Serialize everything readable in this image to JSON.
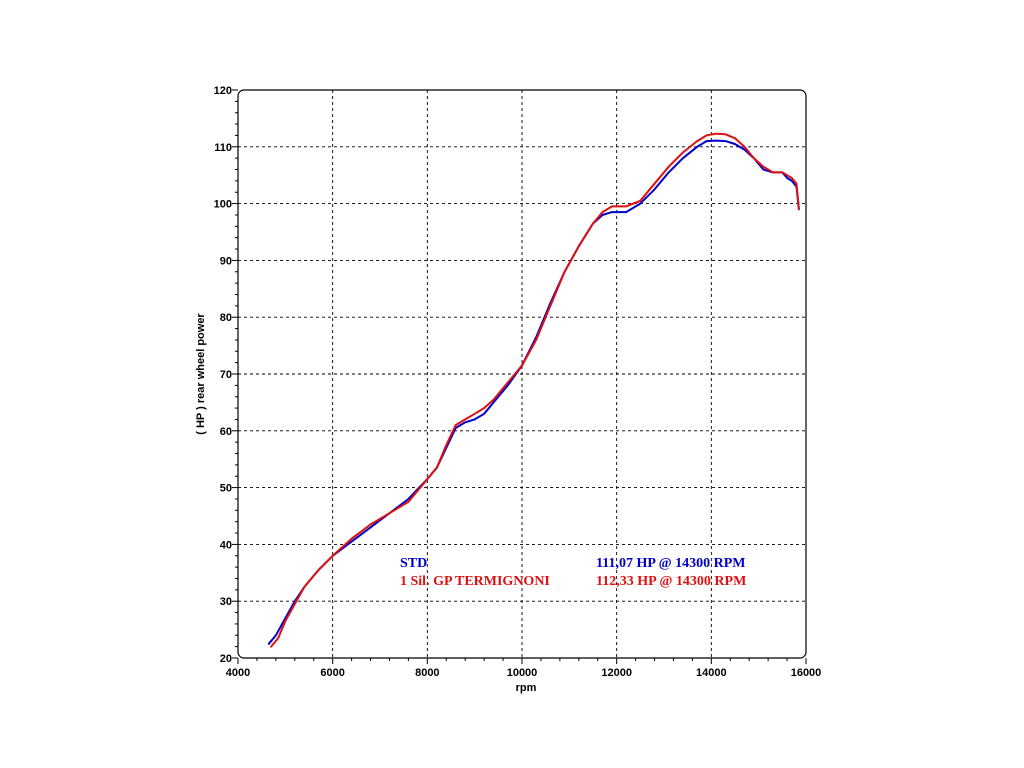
{
  "chart_data": {
    "type": "line",
    "xlabel": "rpm",
    "ylabel": "( HP )   rear  wheel  power",
    "xlim": [
      4000,
      16000
    ],
    "ylim": [
      20,
      120
    ],
    "x_ticks": [
      "4000",
      "6000",
      "8000",
      "10000",
      "12000",
      "14000",
      "16000"
    ],
    "y_ticks": [
      "20",
      "30",
      "40",
      "50",
      "60",
      "70",
      "80",
      "90",
      "100",
      "110",
      "120"
    ],
    "grid": true,
    "series": [
      {
        "name": "STD",
        "summary": "111,07 HP @ 14300 RPM",
        "color": "#0000cc",
        "x": [
          4650,
          4800,
          5000,
          5200,
          5400,
          5700,
          6000,
          6400,
          6800,
          7200,
          7600,
          8000,
          8200,
          8400,
          8600,
          8800,
          9000,
          9200,
          9400,
          9700,
          10000,
          10300,
          10600,
          10900,
          11200,
          11500,
          11700,
          11900,
          12200,
          12500,
          12800,
          13100,
          13400,
          13700,
          13900,
          14100,
          14300,
          14500,
          14700,
          14900,
          15100,
          15300,
          15500,
          15600,
          15700,
          15800,
          15850
        ],
        "y": [
          22.5,
          24,
          27,
          30,
          32.5,
          35.5,
          38,
          40.5,
          43,
          45.5,
          48,
          51.5,
          53.5,
          57,
          60.5,
          61.5,
          62,
          63,
          65,
          68,
          71.5,
          76.5,
          82.5,
          88,
          92.5,
          96.5,
          98,
          98.5,
          98.5,
          100,
          102.5,
          105.5,
          108,
          110,
          111,
          111.1,
          111,
          110.5,
          109.5,
          108,
          106,
          105.5,
          105.5,
          104.5,
          104,
          103,
          99
        ]
      },
      {
        "name": "1 Sil. GP TERMIGNONI",
        "summary": "112,33 HP @ 14300 RPM",
        "color": "#dd1111",
        "x": [
          4700,
          4850,
          5000,
          5200,
          5400,
          5700,
          6000,
          6400,
          6800,
          7200,
          7600,
          8000,
          8200,
          8400,
          8600,
          8800,
          9000,
          9200,
          9400,
          9700,
          10000,
          10300,
          10600,
          10900,
          11200,
          11500,
          11700,
          11900,
          12200,
          12500,
          12800,
          13100,
          13400,
          13700,
          13900,
          14100,
          14300,
          14500,
          14700,
          14900,
          15100,
          15300,
          15500,
          15600,
          15700,
          15800,
          15850
        ],
        "y": [
          22,
          23.5,
          26.5,
          29.5,
          32.5,
          35.5,
          38,
          41,
          43.5,
          45.5,
          47.5,
          51.5,
          53.5,
          57.5,
          61,
          62,
          63,
          64,
          65.5,
          68.5,
          71.5,
          76,
          82,
          88,
          92.5,
          96.5,
          98.5,
          99.5,
          99.5,
          100.5,
          103.5,
          106.5,
          109,
          111,
          112,
          112.3,
          112.2,
          111.5,
          110,
          108,
          106.5,
          105.5,
          105.5,
          105,
          104.5,
          103.5,
          99
        ]
      }
    ]
  }
}
